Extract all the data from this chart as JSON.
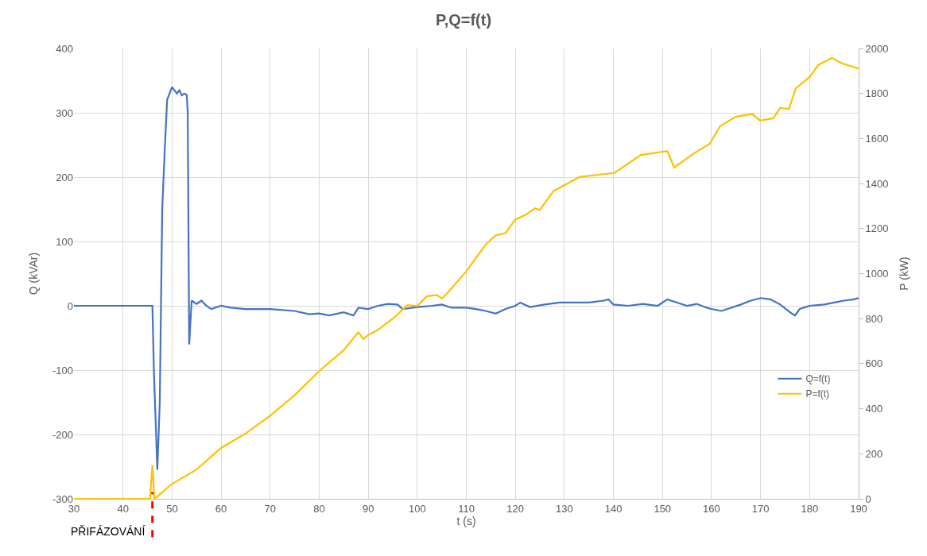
{
  "chart_data": {
    "type": "line",
    "title": "P,Q=f(t)",
    "xlabel": "t (s)",
    "ylabel": "Q (kVAr)",
    "y2label": "P (kW)",
    "xlim": [
      30,
      190
    ],
    "xticks": [
      30,
      40,
      50,
      60,
      70,
      80,
      90,
      100,
      110,
      120,
      130,
      140,
      150,
      160,
      170,
      180,
      190
    ],
    "ylim": [
      -300,
      400
    ],
    "yticks": [
      -300,
      -200,
      -100,
      0,
      100,
      200,
      300,
      400
    ],
    "y2lim": [
      0,
      2000
    ],
    "y2ticks": [
      0,
      200,
      400,
      600,
      800,
      1000,
      1200,
      1400,
      1600,
      1800,
      2000
    ],
    "grid": true,
    "legend": "right",
    "marker": "none",
    "line_style": "solid",
    "ref_lines": [
      {
        "axis": "x",
        "value": 46,
        "label": "PŘIFÁZOVÁNÍ",
        "color": "#ff0000",
        "line_style": "dashed"
      }
    ],
    "series": [
      {
        "name": "Q=f(t)",
        "color": "#4472c4",
        "x": [
          30,
          46,
          46.3,
          47,
          47.5,
          48,
          48.5,
          49,
          49.5,
          50,
          51,
          51.5,
          52,
          52.5,
          53,
          53.2,
          53.5,
          54,
          55,
          56,
          57,
          58,
          60,
          62,
          65,
          70,
          75,
          78,
          80,
          82,
          85,
          87,
          88,
          90,
          92,
          94,
          96,
          97,
          100,
          103,
          105,
          107,
          110,
          112,
          114,
          116,
          118,
          120,
          121,
          123,
          126,
          129,
          132,
          135,
          138,
          139,
          140,
          143,
          146,
          149,
          151,
          153,
          155,
          157,
          159,
          160,
          162,
          164,
          166,
          168,
          170,
          172,
          174,
          176,
          177,
          178,
          180,
          183,
          185,
          187,
          189,
          190
        ],
        "values": [
          0,
          0,
          -100,
          -255,
          -150,
          150,
          240,
          320,
          330,
          340,
          330,
          335,
          327,
          330,
          328,
          300,
          -60,
          8,
          3,
          8,
          0,
          -5,
          0,
          -3,
          -5,
          -5,
          -8,
          -13,
          -12,
          -15,
          -10,
          -15,
          -3,
          -5,
          0,
          3,
          2,
          -5,
          -2,
          0,
          2,
          -3,
          -3,
          -5,
          -8,
          -12,
          -5,
          0,
          5,
          -2,
          2,
          5,
          5,
          5,
          8,
          10,
          2,
          0,
          3,
          0,
          10,
          5,
          0,
          3,
          -3,
          -5,
          -8,
          -3,
          2,
          8,
          12,
          10,
          2,
          -10,
          -15,
          -5,
          0,
          2,
          5,
          8,
          10,
          12
        ]
      },
      {
        "name": "P=f(t)",
        "color": "#ffc000",
        "axis": "y2",
        "x": [
          30,
          45.5,
          46,
          46.4,
          47,
          50,
          55,
          60,
          65,
          70,
          75,
          80,
          85,
          88,
          89,
          90,
          92,
          95,
          97,
          98,
          100,
          102,
          104,
          105,
          106,
          108,
          110,
          112,
          114,
          116,
          118,
          120,
          122,
          124,
          125,
          127.8,
          133.2,
          140.2,
          145.6,
          151,
          152.4,
          156.4,
          159.6,
          161.8,
          165,
          168.3,
          169.9,
          172.6,
          174,
          175.8,
          177.2,
          180.1,
          181.8,
          184.5,
          186.6,
          190
        ],
        "values": [
          0,
          0,
          150,
          0,
          10,
          66,
          130,
          226,
          290,
          369,
          460,
          567,
          660,
          740,
          710,
          727,
          750,
          800,
          840,
          860,
          856,
          900,
          905,
          890,
          910,
          960,
          1010,
          1070,
          1130,
          1170,
          1180,
          1240,
          1260,
          1290,
          1283,
          1367,
          1430,
          1447,
          1527,
          1544,
          1471,
          1534,
          1576,
          1656,
          1697,
          1708,
          1680,
          1690,
          1736,
          1732,
          1823,
          1875,
          1927,
          1958,
          1934,
          1910
        ]
      }
    ]
  }
}
